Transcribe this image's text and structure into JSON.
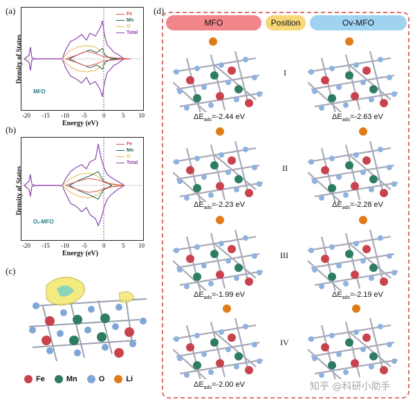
{
  "panels": {
    "a": {
      "label": "(a)",
      "inplot": "MFO"
    },
    "b": {
      "label": "(b)",
      "inplot": "Oᵥ-MFO"
    },
    "c": {
      "label": "(c)"
    },
    "d": {
      "label": "(d)"
    }
  },
  "axes": {
    "ylabel": "Density of States",
    "xlabel": "Energy (eV)",
    "xticks": [
      "-20",
      "-15",
      "-10",
      "-5",
      "0",
      "5",
      "10"
    ]
  },
  "dos_legend": [
    {
      "name": "Fe",
      "color": "#d9534f"
    },
    {
      "name": "Mn",
      "color": "#1f5f5b"
    },
    {
      "name": "O",
      "color": "#e8b84a"
    },
    {
      "name": "Total",
      "color": "#8e44ad"
    }
  ],
  "header": {
    "left": "MFO",
    "middle": "Position",
    "right": "Ov-MFO"
  },
  "header_colors": {
    "left": "#f2858a",
    "middle": "#f7d778",
    "right": "#9fd3f0"
  },
  "positions": [
    "I",
    "II",
    "III",
    "IV"
  ],
  "energies_mfo": [
    "-2.44 eV",
    "-2.23 eV",
    "-1.99 eV",
    "-2.00 eV"
  ],
  "energies_ov": [
    "-2.63 eV",
    "-2.28 eV",
    "-2.19 eV",
    ""
  ],
  "energy_prefix": "ΔE",
  "energy_sub": "ads",
  "atom_legend": [
    {
      "name": "Fe",
      "color": "#c9434f"
    },
    {
      "name": "Mn",
      "color": "#2e7d63"
    },
    {
      "name": "O",
      "color": "#7fa6d6"
    },
    {
      "name": "Li",
      "color": "#e07b1a"
    }
  ],
  "watermark": "知乎 @科研小助手"
}
